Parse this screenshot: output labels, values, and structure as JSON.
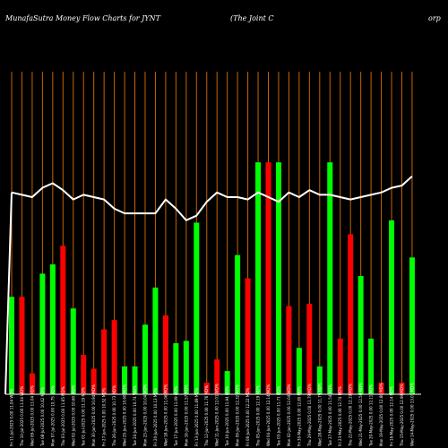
{
  "chart_data": {
    "type": "bar",
    "title": "MunafaSutra  Money Flow  Charts for JYNT",
    "company_name": "(The   Joint C",
    "company_name_tail": "orp",
    "categories": [
      "Fri 11-Jul-2025",
      "Thu 10-Jul-2025",
      "Wed 09-Jul-2025",
      "Tue 08-Jul-2025",
      "Mon 07-Jul-2025",
      "Thu 03-Jul-2025",
      "Wed 02-Jul-2025",
      "Tue 01-Jul-2025",
      "Mon 30-Jun-2025",
      "Fri 27-Jun-2025",
      "Thu 26-Jun-2025",
      "Wed 25-Jun-2025",
      "Tue 24-Jun-2025",
      "Mon 23-Jun-2025",
      "Fri 20-Jun-2025",
      "Wed 18-Jun-2025",
      "Tue 17-Jun-2025",
      "Mon 16-Jun-2025",
      "Fri 13-Jun-2025",
      "Thu 12-Jun-2025",
      "Wed 11-Jun-2025",
      "Tue 10-Jun-2025",
      "Mon 09-Jun-2025",
      "Fri 06-Jun-2025",
      "Thu 05-Jun-2025",
      "Wed 04-Jun-2025",
      "Tue 03-Jun-2025",
      "Mon 02-Jun-2025",
      "Fri 30-May-2025",
      "Thu 29-May-2025",
      "Wed 28-May-2025",
      "Tue 27-May-2025",
      "Fri 23-May-2025",
      "Thu 22-May-2025",
      "Wed 21-May-2025",
      "Tue 20-May-2025",
      "Mon 19-May-2025",
      "Fri 16-May-2025",
      "Thu 15-May-2025",
      "Wed 14-May-2025"
    ],
    "x_tick_labels": [
      "0.00 11.04 WD%",
      "0.00 11.04 WD%",
      "0.00 11.04 MD%",
      "0.00 10.42 MD%",
      "0.00 10.75 MD%",
      "0.00 11.65 MD%",
      "0.00 10.60 WD%",
      "0.00 11.19 MD%",
      "0.00 10.94 MD%",
      "0.00 10.52 MD%",
      "0.00 10.73 MD%",
      "0.00 10.60 MD%",
      "0.00 10.74 WD%",
      "0.00 10.04 WD%",
      "0.00 10.13 MD%",
      "0.00 11.06 MD%",
      "0.00 11.09 MD%",
      "0.00 11.57 MD%",
      "0.00 11.69 MD%",
      "0.00 11.76 MD%",
      "0.00 12.01 WD%",
      "0.00 11.94 MD%",
      "0.00 12.32 MD%",
      "0.00 12.22 MD%",
      "0.00 12.19 MD%",
      "0.00 12.14 MD%",
      "0.00 11.71 MD%",
      "0.00 12.04 WD%",
      "0.00 12.80 MD%",
      "0.00 11.79 MD%",
      "0.00 11.79 MD%",
      "0.00 11.54 MD%",
      "0.00 12.74 MD%",
      "0.00 12.19 MD%",
      "0.00 12.50 MD%",
      "0.00 12.11 MD%",
      "0.00 12.80 MD%",
      "0.00 12.14 MD%",
      "0.00 12.99 MD%",
      "0.00 13.01 MD%"
    ],
    "series": [
      {
        "values": [
          42,
          42,
          9,
          52,
          56,
          64,
          37,
          17,
          11,
          28,
          32,
          12,
          12,
          30,
          46,
          34,
          22,
          23,
          74,
          5,
          15,
          10,
          60,
          50,
          100,
          100,
          100,
          38,
          20,
          39,
          12,
          100,
          24,
          69,
          51,
          24,
          5,
          75,
          5,
          59
        ],
        "colors": [
          "green",
          "red",
          "red",
          "green",
          "green",
          "red",
          "green",
          "red",
          "red",
          "red",
          "red",
          "green",
          "green",
          "green",
          "green",
          "red",
          "green",
          "green",
          "green",
          "red",
          "red",
          "green",
          "green",
          "red",
          "green",
          "red",
          "green",
          "red",
          "green",
          "red",
          "green",
          "green",
          "red",
          "red",
          "green",
          "green",
          "red",
          "green",
          "red",
          "green"
        ]
      },
      {
        "values": [
          87,
          86,
          85,
          89,
          91,
          88,
          84,
          86,
          85,
          84,
          80,
          78,
          78,
          78,
          78,
          84,
          80,
          75,
          77,
          83,
          87,
          85,
          85,
          84,
          87,
          85,
          83,
          87,
          85,
          88,
          86,
          86,
          85,
          84,
          85,
          86,
          87,
          89,
          90,
          94
        ],
        "color": "white"
      }
    ],
    "ylim": [
      0,
      170
    ],
    "grid": "vertical lines",
    "colors": {
      "background": "#000000",
      "positive": "#00ff00",
      "negative": "#ff0000",
      "line": "#ffffff",
      "grid": "#c86400",
      "axis": "#ffffff"
    }
  }
}
